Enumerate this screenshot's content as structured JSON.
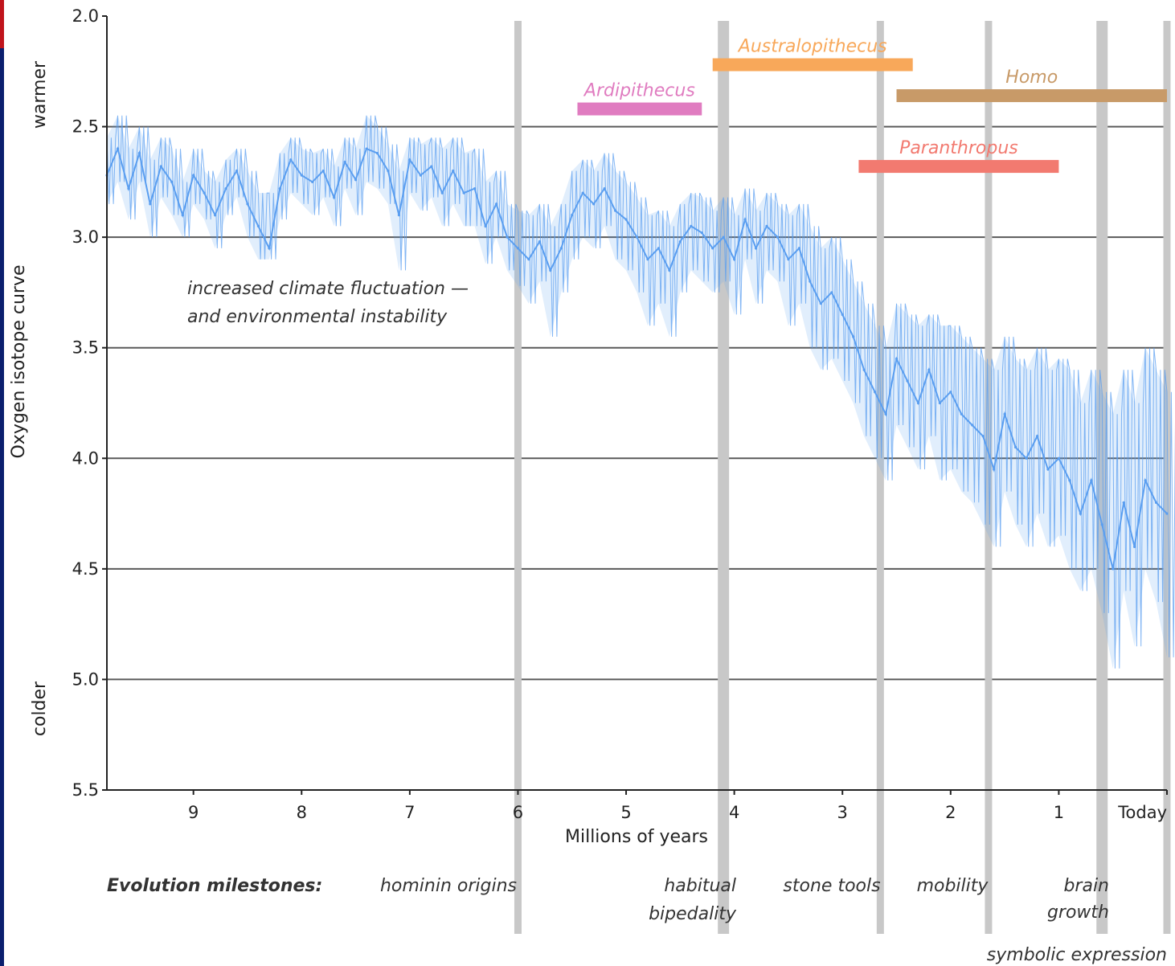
{
  "chart_data": {
    "type": "line",
    "xlabel": "Millions of years",
    "ylabel": "Oxygen isotope curve",
    "ylabel_top": "warmer",
    "ylabel_bottom": "colder",
    "xlim": [
      9.8,
      0
    ],
    "ylim": [
      2.0,
      5.5
    ],
    "y_inverted": true,
    "grid": true,
    "x_ticks": [
      {
        "value": 9,
        "label": "9"
      },
      {
        "value": 8,
        "label": "8"
      },
      {
        "value": 7,
        "label": "7"
      },
      {
        "value": 6,
        "label": "6"
      },
      {
        "value": 5,
        "label": "5"
      },
      {
        "value": 4,
        "label": "4"
      },
      {
        "value": 3,
        "label": "3"
      },
      {
        "value": 2,
        "label": "2"
      },
      {
        "value": 1,
        "label": "1"
      },
      {
        "value": 0,
        "label": "Today"
      }
    ],
    "y_ticks": [
      "2.0",
      "2.5",
      "3.0",
      "3.5",
      "4.0",
      "4.5",
      "5.0",
      "5.5"
    ],
    "series": [
      {
        "x": [
          9.8,
          9.7,
          9.6,
          9.5,
          9.4,
          9.3,
          9.2,
          9.1,
          9.0,
          8.9,
          8.8,
          8.7,
          8.6,
          8.5,
          8.4,
          8.3,
          8.2,
          8.1,
          8.0,
          7.9,
          7.8,
          7.7,
          7.6,
          7.5,
          7.4,
          7.3,
          7.2,
          7.1,
          7.0,
          6.9,
          6.8,
          6.7,
          6.6,
          6.5,
          6.4,
          6.3,
          6.2,
          6.1,
          6.0,
          5.9,
          5.8,
          5.7,
          5.6,
          5.5,
          5.4,
          5.3,
          5.2,
          5.1,
          5.0,
          4.9,
          4.8,
          4.7,
          4.6,
          4.5,
          4.4,
          4.3,
          4.2,
          4.1,
          4.0,
          3.9,
          3.8,
          3.7,
          3.6,
          3.5,
          3.4,
          3.3,
          3.2,
          3.1,
          3.0,
          2.9,
          2.8,
          2.7,
          2.6,
          2.5,
          2.4,
          2.3,
          2.2,
          2.1,
          2.0,
          1.9,
          1.8,
          1.7,
          1.6,
          1.5,
          1.4,
          1.3,
          1.2,
          1.1,
          1.0,
          0.9,
          0.8,
          0.7,
          0.6,
          0.5,
          0.4,
          0.3,
          0.2,
          0.1,
          0.0
        ],
        "values": [
          2.72,
          2.6,
          2.78,
          2.62,
          2.85,
          2.68,
          2.75,
          2.9,
          2.72,
          2.8,
          2.9,
          2.78,
          2.7,
          2.85,
          2.95,
          3.05,
          2.78,
          2.65,
          2.72,
          2.75,
          2.7,
          2.82,
          2.66,
          2.74,
          2.6,
          2.62,
          2.7,
          2.9,
          2.65,
          2.72,
          2.68,
          2.8,
          2.7,
          2.8,
          2.78,
          2.95,
          2.85,
          3.0,
          3.05,
          3.1,
          3.02,
          3.15,
          3.05,
          2.9,
          2.8,
          2.85,
          2.78,
          2.88,
          2.92,
          3.0,
          3.1,
          3.05,
          3.15,
          3.02,
          2.95,
          2.98,
          3.05,
          3.0,
          3.1,
          2.92,
          3.05,
          2.95,
          3.0,
          3.1,
          3.05,
          3.2,
          3.3,
          3.25,
          3.35,
          3.45,
          3.6,
          3.7,
          3.8,
          3.55,
          3.65,
          3.75,
          3.6,
          3.75,
          3.7,
          3.8,
          3.85,
          3.9,
          4.05,
          3.8,
          3.95,
          4.0,
          3.9,
          4.05,
          4.0,
          4.1,
          4.25,
          4.1,
          4.3,
          4.5,
          4.2,
          4.4,
          4.1,
          4.2,
          4.25
        ],
        "range_low": [
          2.55,
          2.45,
          2.6,
          2.5,
          2.65,
          2.55,
          2.6,
          2.75,
          2.6,
          2.7,
          2.75,
          2.65,
          2.6,
          2.7,
          2.8,
          2.8,
          2.62,
          2.55,
          2.6,
          2.62,
          2.6,
          2.68,
          2.55,
          2.6,
          2.45,
          2.5,
          2.58,
          2.7,
          2.55,
          2.58,
          2.55,
          2.6,
          2.55,
          2.62,
          2.6,
          2.75,
          2.7,
          2.85,
          2.88,
          2.9,
          2.85,
          2.95,
          2.85,
          2.7,
          2.65,
          2.7,
          2.62,
          2.7,
          2.75,
          2.82,
          2.9,
          2.88,
          2.95,
          2.85,
          2.8,
          2.82,
          2.88,
          2.82,
          2.9,
          2.78,
          2.88,
          2.8,
          2.85,
          2.9,
          2.85,
          2.95,
          3.05,
          3.0,
          3.1,
          3.2,
          3.3,
          3.4,
          3.5,
          3.3,
          3.35,
          3.4,
          3.35,
          3.4,
          3.4,
          3.45,
          3.5,
          3.55,
          3.6,
          3.45,
          3.55,
          3.6,
          3.5,
          3.6,
          3.55,
          3.6,
          3.75,
          3.6,
          3.7,
          3.8,
          3.6,
          3.75,
          3.5,
          3.6,
          3.7
        ],
        "range_high": [
          2.85,
          2.75,
          2.92,
          2.75,
          3.0,
          2.82,
          2.9,
          3.0,
          2.85,
          2.92,
          3.05,
          2.9,
          2.82,
          3.0,
          3.1,
          3.1,
          2.92,
          2.8,
          2.85,
          2.9,
          2.82,
          2.95,
          2.78,
          2.9,
          2.75,
          2.78,
          2.85,
          3.15,
          2.8,
          2.88,
          2.82,
          2.95,
          2.85,
          2.95,
          2.95,
          3.12,
          3.0,
          3.15,
          3.22,
          3.3,
          3.2,
          3.45,
          3.25,
          3.1,
          3.0,
          3.05,
          2.95,
          3.1,
          3.15,
          3.25,
          3.4,
          3.3,
          3.45,
          3.25,
          3.15,
          3.2,
          3.25,
          3.2,
          3.35,
          3.1,
          3.3,
          3.15,
          3.2,
          3.4,
          3.3,
          3.5,
          3.6,
          3.55,
          3.65,
          3.75,
          3.9,
          4.0,
          4.1,
          3.85,
          3.95,
          4.05,
          3.9,
          4.1,
          4.05,
          4.15,
          4.2,
          4.3,
          4.4,
          4.15,
          4.3,
          4.4,
          4.25,
          4.4,
          4.35,
          4.5,
          4.6,
          4.5,
          4.7,
          4.95,
          4.6,
          4.85,
          4.5,
          4.65,
          4.9
        ]
      }
    ],
    "colors": {
      "series": "#5a9ef0",
      "gridline": "#5a5a5a",
      "milestone_band": "#c8c8c8",
      "Ardipithecus": "#e07cc0",
      "Australopithecus": "#f8a85a",
      "Homo": "#c89a68",
      "Paranthropus": "#f27a70"
    },
    "milestone_bands": [
      6.0,
      4.1,
      2.65,
      1.65,
      0.6,
      0.0
    ],
    "genus_ranges": [
      {
        "name": "Ardipithecus",
        "start": 5.45,
        "end": 4.3,
        "y": 2.42,
        "color_key": "Ardipithecus"
      },
      {
        "name": "Australopithecus",
        "start": 4.2,
        "end": 2.35,
        "y": 2.22,
        "color_key": "Australopithecus"
      },
      {
        "name": "Homo",
        "start": 2.5,
        "end": 0.0,
        "y": 2.36,
        "color_key": "Homo"
      },
      {
        "name": "Paranthropus",
        "start": 2.85,
        "end": 1.0,
        "y": 2.68,
        "color_key": "Paranthropus"
      }
    ],
    "annotation": {
      "line1": "increased climate fluctuation —",
      "line2": "and environmental instability"
    },
    "milestones": {
      "header": "Evolution milestones:",
      "items": [
        {
          "lines": [
            "hominin origins"
          ]
        },
        {
          "lines": [
            "habitual",
            "bipedality"
          ]
        },
        {
          "lines": [
            "stone tools"
          ]
        },
        {
          "lines": [
            "mobility"
          ]
        },
        {
          "lines": [
            "brain",
            "growth"
          ]
        },
        {
          "lines": [
            "symbolic expression"
          ]
        }
      ]
    }
  }
}
